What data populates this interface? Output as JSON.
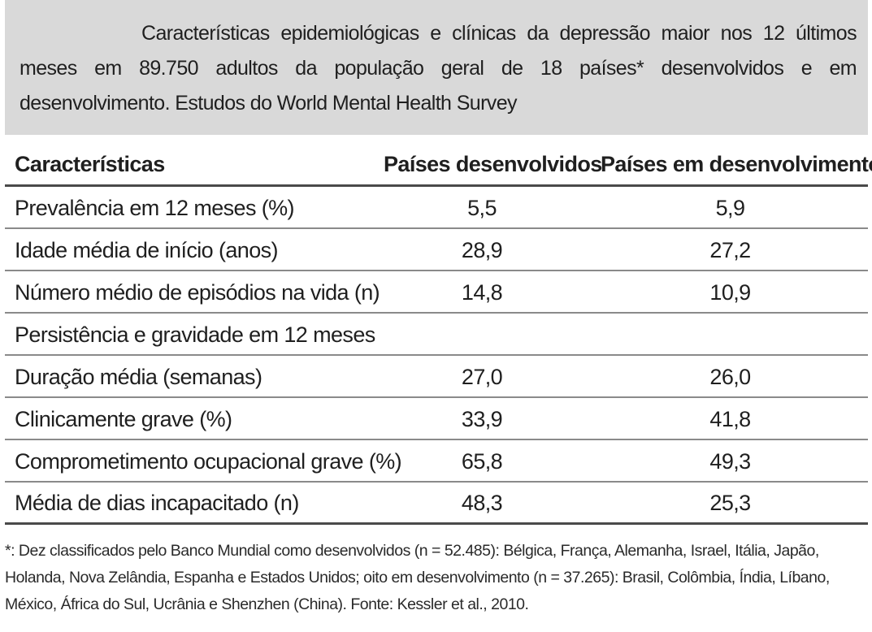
{
  "caption": {
    "text": "Características epidemiológicas e clínicas da depressão maior nos 12 últimos meses em 89.750 adultos da população geral de 18 países* desenvolvidos e em desenvolvimento. Estudos do World Mental Health Survey"
  },
  "table": {
    "headers": [
      "Características",
      "Países desenvolvidos",
      "Países em desenvolvimento"
    ],
    "rows": [
      {
        "label": "Prevalência em 12 meses (%)",
        "developed": "5,5",
        "developing": "5,9"
      },
      {
        "label": "Idade média de início (anos)",
        "developed": "28,9",
        "developing": "27,2"
      },
      {
        "label": "Número médio de episódios na vida (n)",
        "developed": "14,8",
        "developing": "10,9"
      },
      {
        "label": "Persistência e gravidade em 12 meses",
        "developed": "",
        "developing": ""
      },
      {
        "label": "Duração média (semanas)",
        "developed": "27,0",
        "developing": "26,0"
      },
      {
        "label": "Clinicamente grave (%)",
        "developed": "33,9",
        "developing": "41,8"
      },
      {
        "label": "Comprometimento ocupacional grave (%)",
        "developed": "65,8",
        "developing": "49,3"
      },
      {
        "label": "Média de dias incapacitado (n)",
        "developed": "48,3",
        "developing": "25,3"
      }
    ]
  },
  "footnote": {
    "text": "*: Dez classificados pelo Banco Mundial como desenvolvidos (n = 52.485): Bélgica, França, Alemanha, Israel, Itália, Japão, Holanda, Nova Zelândia, Espanha e Estados Unidos; oito em desenvolvimento (n = 37.265): Brasil, Colômbia, Índia, Líbano, México, África do Sul, Ucrânia e Shenzhen (China). Fonte: Kessler et al., 2010."
  }
}
